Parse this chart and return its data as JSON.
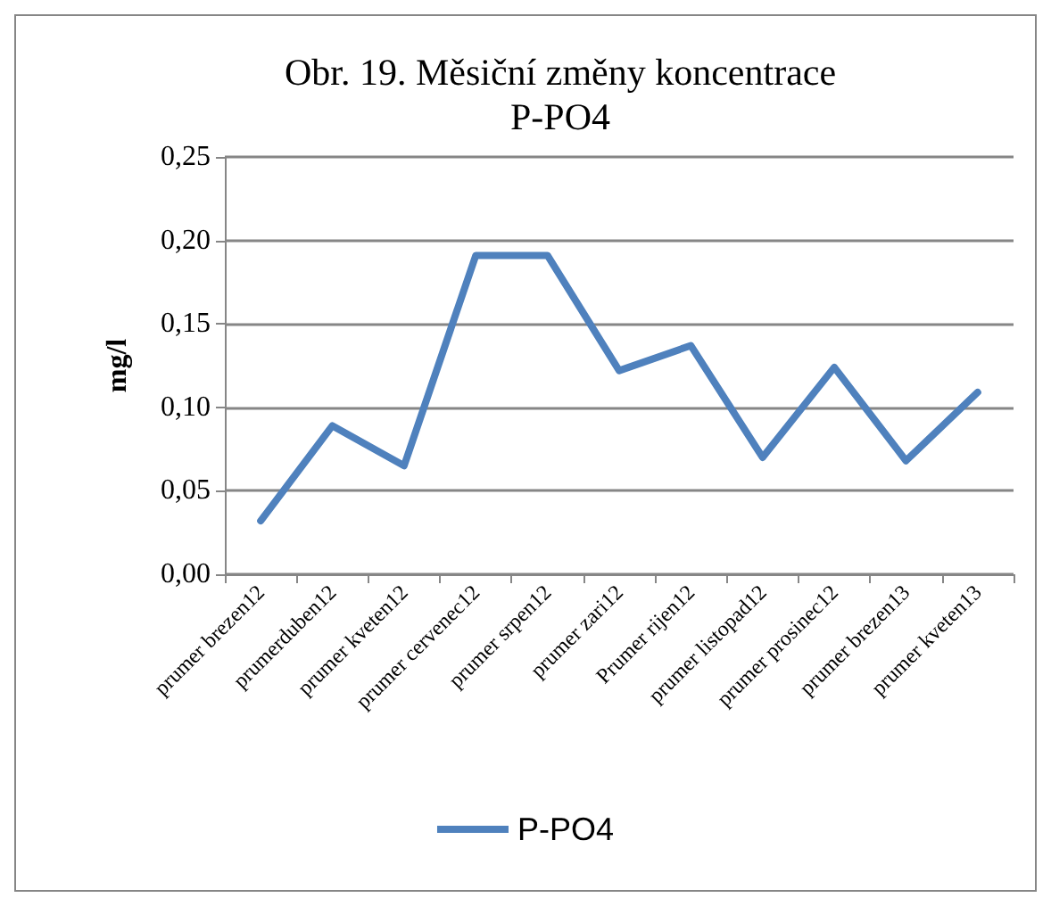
{
  "chart_data": {
    "type": "line",
    "title": "Obr. 19. Měsiční změny koncentrace\nP-PO4",
    "ylabel": "mg/l",
    "categories": [
      "prumer brezen12",
      "prumerduben12",
      "prumer kveten12",
      "prumer cervenec12",
      "prumer srpen12",
      "prumer zari12",
      "Prumer rijen12",
      "prumer listopad12",
      "prumer prosinec12",
      "prumer brezen13",
      "prumer kveten13"
    ],
    "series": [
      {
        "name": "P-PO4",
        "color": "#4f81bd",
        "values": [
          0.032,
          0.089,
          0.065,
          0.191,
          0.191,
          0.122,
          0.137,
          0.07,
          0.124,
          0.068,
          0.109
        ]
      }
    ],
    "ylim": [
      0,
      0.25
    ],
    "yticks": [
      {
        "value": 0,
        "label": "0,00"
      },
      {
        "value": 0.05,
        "label": "0,05"
      },
      {
        "value": 0.1,
        "label": "0,10"
      },
      {
        "value": 0.15,
        "label": "0,15"
      },
      {
        "value": 0.2,
        "label": "0,20"
      },
      {
        "value": 0.25,
        "label": "0,25"
      }
    ],
    "grid": "y",
    "legend": "bottom",
    "marker": "none",
    "line_style": "solid"
  }
}
